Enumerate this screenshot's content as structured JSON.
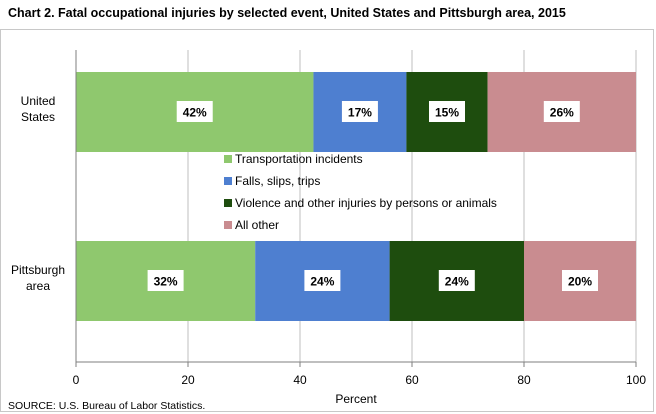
{
  "title": "Chart 2. Fatal occupational injuries by selected event, United States and Pittsburgh area, 2015",
  "source": "SOURCE: U.S. Bureau of Labor Statistics.",
  "colors": {
    "transportation": "#8fc86e",
    "falls": "#4e7fd0",
    "violence": "#1e4d0e",
    "other": "#c98c90",
    "grid": "#bfbfbf",
    "axis": "#7f7f7f",
    "label_bg": "#ffffff"
  },
  "chart_data": {
    "type": "bar",
    "orientation": "horizontal",
    "stacked": true,
    "title": "Chart 2. Fatal occupational injuries by selected event, United States and Pittsburgh area, 2015",
    "xlabel": "Percent",
    "ylabel": "",
    "xlim": [
      0,
      100
    ],
    "xticks": [
      0,
      20,
      40,
      60,
      80,
      100
    ],
    "grid": true,
    "legend_position": "center",
    "categories": [
      [
        "United",
        "States"
      ],
      [
        "Pittsburgh",
        "area"
      ]
    ],
    "series": [
      {
        "name": "Transportation incidents",
        "color_key": "transportation",
        "values": [
          42.4,
          32
        ],
        "labels": [
          "42%",
          "32%"
        ]
      },
      {
        "name": "Falls, slips, trips",
        "color_key": "falls",
        "values": [
          16.6,
          24
        ],
        "labels": [
          "17%",
          "24%"
        ]
      },
      {
        "name": "Violence and other injuries by persons or animals",
        "color_key": "violence",
        "values": [
          14.5,
          24
        ],
        "labels": [
          "15%",
          "24%"
        ]
      },
      {
        "name": "All other",
        "color_key": "other",
        "values": [
          26.5,
          20
        ],
        "labels": [
          "26%",
          "20%"
        ]
      }
    ]
  }
}
